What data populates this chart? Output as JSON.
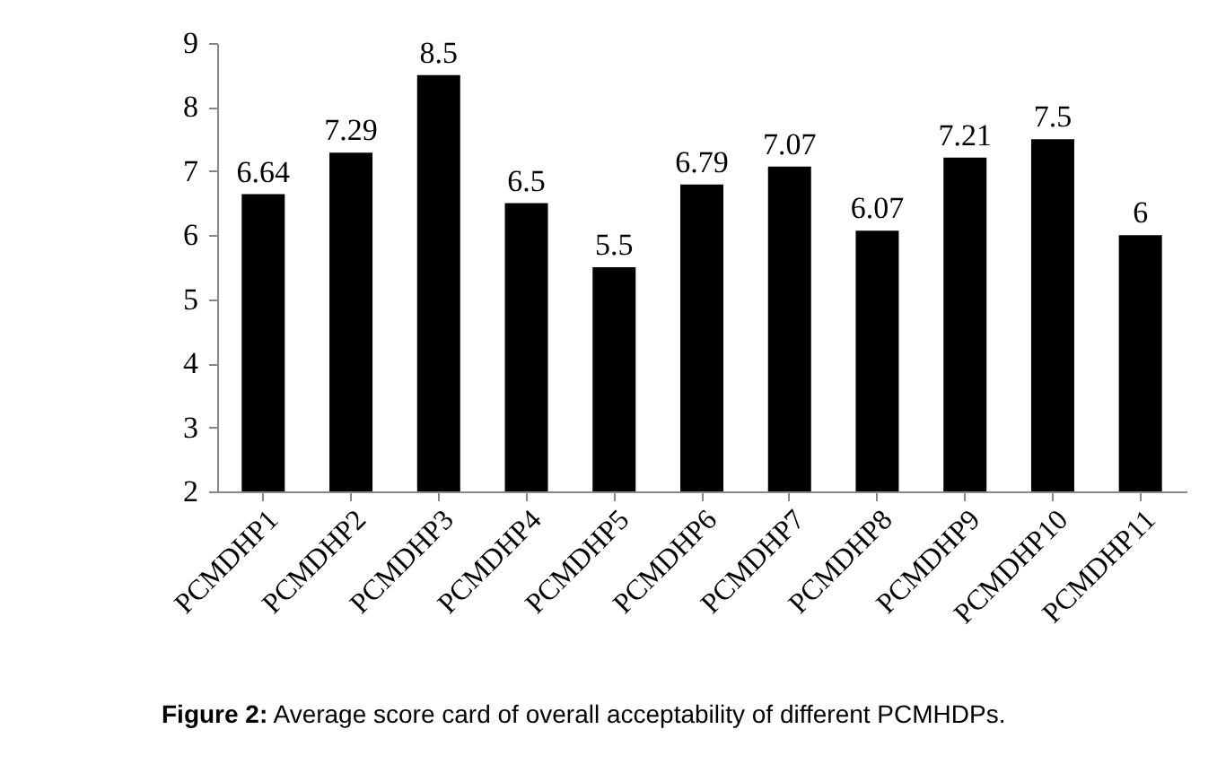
{
  "chart_data": {
    "type": "bar",
    "categories": [
      "PCMDHP1",
      "PCMDHP2",
      "PCMDHP3",
      "PCMDHP4",
      "PCMDHP5",
      "PCMDHP6",
      "PCMDHP7",
      "PCMDHP8",
      "PCMDHP9",
      "PCMDHP10",
      "PCMDHP11"
    ],
    "values": [
      6.64,
      7.29,
      8.5,
      6.5,
      5.5,
      6.79,
      7.07,
      6.07,
      7.21,
      7.5,
      6
    ],
    "color": "#000000",
    "ylim": [
      2,
      9
    ],
    "yticks": [
      2,
      3,
      4,
      5,
      6,
      7,
      8,
      9
    ],
    "data_labels": true,
    "grid": false,
    "annotations": [
      "Figure 2: Average score card of overall acceptability of different PCMHDPs."
    ]
  }
}
